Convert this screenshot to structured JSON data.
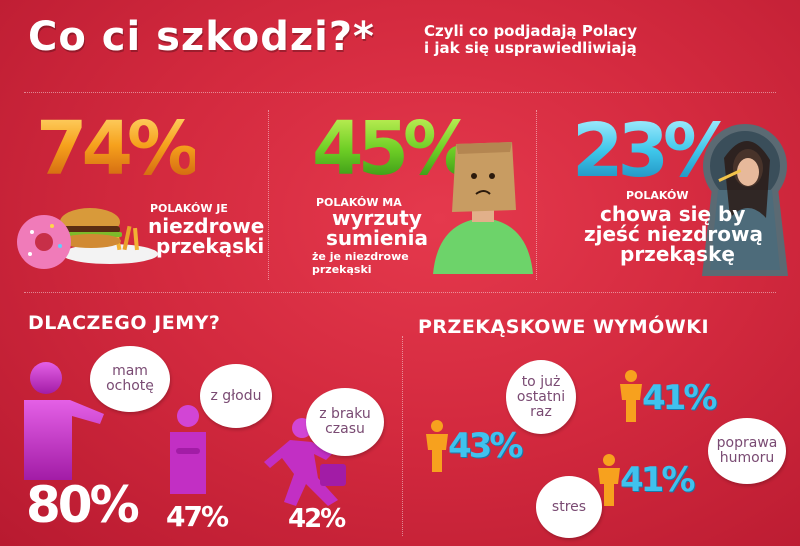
{
  "header": {
    "title": "Co ci szkodzi?*",
    "subtitle_line1": "Czyli co podjadają Polacy",
    "subtitle_line2": "i jak się usprawiedliwiają"
  },
  "stats": [
    {
      "value": "74%",
      "small": "POLAKÓW JE",
      "line1": "niezdrowe",
      "line2": "przekąski"
    },
    {
      "value": "45%",
      "small": "POLAKÓW MA",
      "line1": "wyrzuty",
      "line2": "sumienia",
      "line3": "że je niezdrowe",
      "line4": "przekąski"
    },
    {
      "value": "23%",
      "small": "POLAKÓW",
      "line1": "chowa się by",
      "line2": "zjeść niezdrową",
      "line3": "przekąskę"
    }
  ],
  "why": {
    "heading": "DLACZEGO JEMY?",
    "items": [
      {
        "pct": "80%",
        "line1": "mam",
        "line2": "ochotę"
      },
      {
        "pct": "47%",
        "line1": "z głodu"
      },
      {
        "pct": "42%",
        "line1": "z braku",
        "line2": "czasu"
      }
    ]
  },
  "excuses": {
    "heading": "PRZEKĄSKOWE WYMÓWKI",
    "items": [
      {
        "pct": "43%",
        "line1": "to już",
        "line2": "ostatni",
        "line3": "raz"
      },
      {
        "pct": "41%",
        "line1": "poprawa",
        "line2": "humoru"
      },
      {
        "pct": "41%",
        "line1": "stres"
      }
    ]
  },
  "colors": {
    "background": "#d42a3f",
    "purple": "#c22fc4",
    "blue": "#40c2ee",
    "orange": "#f7a11e"
  }
}
